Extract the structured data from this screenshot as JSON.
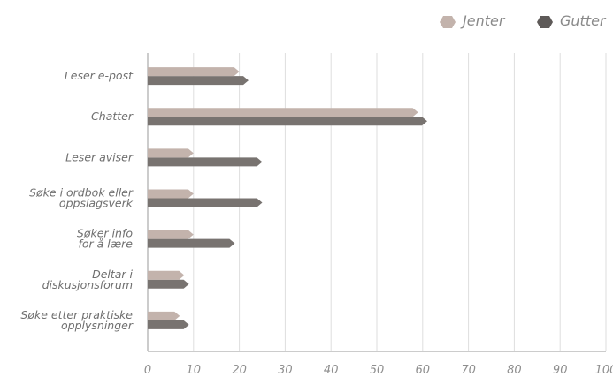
{
  "chart_data": {
    "type": "bar",
    "orientation": "horizontal",
    "categories": [
      [
        "Leser e-post"
      ],
      [
        "Chatter"
      ],
      [
        "Leser aviser"
      ],
      [
        "Søke i ordbok eller",
        "oppslagsverk"
      ],
      [
        "Søker info",
        "for å lære"
      ],
      [
        "Deltar i",
        "diskusjonsforum"
      ],
      [
        "Søke etter praktiske",
        "opplysninger"
      ]
    ],
    "series": [
      {
        "name": "Jenter",
        "color": "#c3b3ac",
        "values": [
          20,
          59,
          10,
          10,
          10,
          8,
          7
        ]
      },
      {
        "name": "Gutter",
        "color": "#787370",
        "values": [
          22,
          61,
          25,
          25,
          19,
          9,
          9
        ]
      }
    ],
    "xlim": [
      0,
      100
    ],
    "xticks": [
      "0",
      "10",
      "20",
      "30",
      "40",
      "50",
      "60",
      "70",
      "80",
      "90",
      "100"
    ],
    "grid": true,
    "legend_position": "top-right"
  }
}
